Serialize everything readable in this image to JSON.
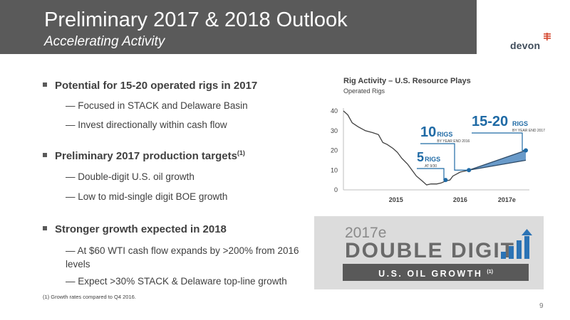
{
  "header": {
    "title": "Preliminary 2017 & 2018 Outlook",
    "subtitle": "Accelerating Activity",
    "logo_text": "devon"
  },
  "bullets": [
    {
      "text": "Potential for 15-20 operated rigs in 2017",
      "subs": [
        "Focused in STACK and Delaware Basin",
        "Invest directionally within cash flow"
      ]
    },
    {
      "text": "Preliminary 2017 production targets",
      "sup": "(1)",
      "subs": [
        "Double-digit U.S. oil growth",
        "Low to mid-single digit BOE growth"
      ]
    },
    {
      "text": "Stronger growth expected in 2018",
      "subs": [
        "At $60 WTI cash flow expands by >200% from 2016 levels",
        "Expect >30% STACK & Delaware top-line growth"
      ]
    }
  ],
  "footnote": "(1)   Growth rates compared to Q4 2016.",
  "page_number": "9",
  "chart_data": {
    "type": "line",
    "title": "Rig Activity – U.S. Resource Plays",
    "subtitle": "Operated Rigs",
    "ylim": [
      0,
      40
    ],
    "yticks": [
      "0",
      "10",
      "20",
      "30",
      "40"
    ],
    "xticks": [
      "2015",
      "2016",
      "2017e"
    ],
    "series": [
      {
        "x": [
          0,
          0.3,
          0.6,
          1,
          1.5,
          2,
          2.4,
          2.7,
          3,
          3.4,
          3.7,
          4,
          4.4,
          4.7,
          5,
          5.4,
          5.7,
          6.0,
          6.4,
          6.7,
          7.0,
          7.3,
          7.5,
          8.0,
          8.6
        ],
        "y": [
          40,
          38,
          34,
          32,
          30,
          29,
          28,
          24,
          23,
          21,
          19,
          16,
          13,
          10,
          7,
          4.5,
          2.5,
          3,
          3,
          3.5,
          4.5,
          5,
          7,
          9,
          10
        ]
      }
    ],
    "projection_x": [
      8.6,
      12.5
    ],
    "projection_low": [
      10,
      15
    ],
    "projection_high": [
      10,
      20
    ],
    "annotations": [
      {
        "big": "5",
        "small": "RIGS",
        "note": "AT 9/30"
      },
      {
        "big": "10",
        "small": "RIGS",
        "note": "BY YEAR END 2016"
      },
      {
        "big": "15-20",
        "small": "RIGS",
        "note": "BY YEAR END 2017"
      }
    ],
    "colors": {
      "line": "#404040",
      "accent": "#1f6aa5",
      "fill": "#4f88bf"
    }
  },
  "panel": {
    "year": "2017e",
    "main": "DOUBLE DIGIT",
    "bar_text": "U.S. OIL GROWTH",
    "bar_sup": "(1)"
  }
}
